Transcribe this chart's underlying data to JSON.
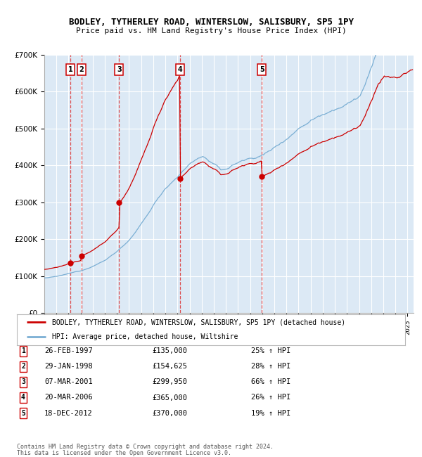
{
  "title": "BODLEY, TYTHERLEY ROAD, WINTERSLOW, SALISBURY, SP5 1PY",
  "subtitle": "Price paid vs. HM Land Registry's House Price Index (HPI)",
  "bg_color": "#dce9f5",
  "red_line_color": "#cc0000",
  "blue_line_color": "#7bafd4",
  "vline_color": "#dd3333",
  "transactions": [
    {
      "num": 1,
      "price": 135000,
      "year_x": 1997.15
    },
    {
      "num": 2,
      "price": 154625,
      "year_x": 1998.08
    },
    {
      "num": 3,
      "price": 299950,
      "year_x": 2001.18
    },
    {
      "num": 4,
      "price": 365000,
      "year_x": 2006.22
    },
    {
      "num": 5,
      "price": 370000,
      "year_x": 2012.97
    }
  ],
  "legend_red_label": "BODLEY, TYTHERLEY ROAD, WINTERSLOW, SALISBURY, SP5 1PY (detached house)",
  "legend_blue_label": "HPI: Average price, detached house, Wiltshire",
  "footer1": "Contains HM Land Registry data © Crown copyright and database right 2024.",
  "footer2": "This data is licensed under the Open Government Licence v3.0.",
  "table_rows": [
    {
      "num": 1,
      "date": "26-FEB-1997",
      "price": "£135,000",
      "pct": "25% ↑ HPI"
    },
    {
      "num": 2,
      "date": "29-JAN-1998",
      "price": "£154,625",
      "pct": "28% ↑ HPI"
    },
    {
      "num": 3,
      "date": "07-MAR-2001",
      "price": "£299,950",
      "pct": "66% ↑ HPI"
    },
    {
      "num": 4,
      "date": "20-MAR-2006",
      "price": "£365,000",
      "pct": "26% ↑ HPI"
    },
    {
      "num": 5,
      "date": "18-DEC-2012",
      "price": "£370,000",
      "pct": "19% ↑ HPI"
    }
  ],
  "ylim": [
    0,
    700000
  ],
  "xlim_start": 1995,
  "xlim_end": 2025.5
}
